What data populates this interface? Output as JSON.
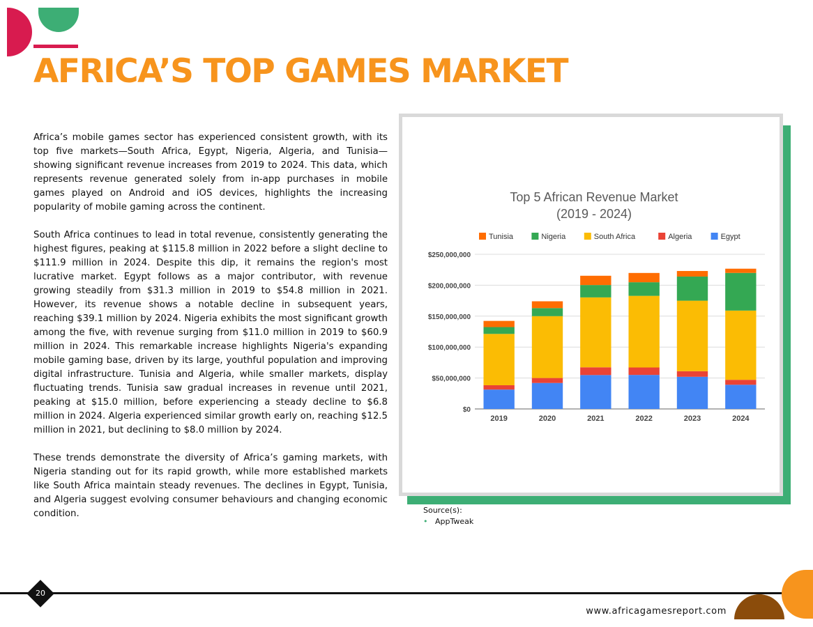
{
  "page": {
    "title": "AFRICA’S TOP GAMES MARKET",
    "paragraphs": [
      "Africa’s mobile games sector has experienced consistent growth, with its top five markets—South Africa, Egypt, Nigeria, Algeria, and Tunisia—showing significant revenue increases from 2019 to 2024. This data, which represents revenue generated solely from in-app purchases in mobile games played on Android and iOS devices, highlights the increasing popularity of mobile gaming across the continent.",
      "South Africa continues to lead in total revenue, consistently generating the highest figures, peaking at $115.8 million in 2022 before a slight decline to $111.9 million in 2024. Despite this dip, it remains the region's most lucrative market. Egypt follows as a major contributor, with revenue growing steadily from $31.3 million in 2019 to $54.8 million in 2021. However, its revenue shows a notable decline in subsequent years, reaching $39.1 million by 2024. Nigeria exhibits the most significant growth among the five, with revenue surging from $11.0 million in 2019 to $60.9 million in 2024. This remarkable increase highlights Nigeria's expanding mobile gaming base, driven by its large, youthful population and improving digital infrastructure. Tunisia and Algeria, while smaller markets, display fluctuating trends. Tunisia saw gradual increases in revenue until 2021, peaking at $15.0 million, before experiencing a steady decline to $6.8 million in 2024. Algeria experienced similar growth early on, reaching $12.5 million in 2021, but declining to $8.0 million by 2024.",
      "These trends demonstrate the diversity of Africa’s gaming markets, with Nigeria standing out for its rapid growth, while more established markets like South Africa maintain steady revenues. The declines in Egypt, Tunisia, and Algeria suggest evolving consumer behaviours and changing economic condition."
    ],
    "source_label": "Source(s):",
    "sources": [
      "AppTweak"
    ],
    "page_number": "20",
    "footer_url": "www.africagamesreport.com"
  },
  "colors": {
    "accent_orange": "#f7941d",
    "accent_green": "#3dae75",
    "accent_pink": "#d81b4f",
    "accent_brown": "#8b4c0b"
  },
  "chart_data": {
    "type": "bar",
    "stacked": true,
    "title_lines": [
      "Top 5 African Revenue Market",
      "(2019 - 2024)"
    ],
    "categories": [
      "2019",
      "2020",
      "2021",
      "2022",
      "2023",
      "2024"
    ],
    "ylim": [
      0,
      250000000
    ],
    "yticks": [
      {
        "value": 0,
        "label": "$0"
      },
      {
        "value": 50000000,
        "label": "$50,000,000"
      },
      {
        "value": 100000000,
        "label": "$100,000,000"
      },
      {
        "value": 150000000,
        "label": "$150,000,000"
      },
      {
        "value": 200000000,
        "label": "$200,000,000"
      },
      {
        "value": 250000000,
        "label": "$250,000,000"
      }
    ],
    "grid": true,
    "legend_position": "top",
    "legend_order": [
      "Tunisia",
      "Nigeria",
      "South Africa",
      "Algeria",
      "Egypt"
    ],
    "series": [
      {
        "name": "Egypt",
        "color": "#4285f4",
        "values": [
          31300000,
          42000000,
          54800000,
          55000000,
          52000000,
          39100000
        ]
      },
      {
        "name": "Algeria",
        "color": "#ea4335",
        "values": [
          7000000,
          8000000,
          12500000,
          12000000,
          9000000,
          8000000
        ]
      },
      {
        "name": "South Africa",
        "color": "#fbbc04",
        "values": [
          83000000,
          100000000,
          113000000,
          115800000,
          114000000,
          111900000
        ]
      },
      {
        "name": "Nigeria",
        "color": "#34a853",
        "values": [
          11000000,
          13000000,
          20000000,
          22000000,
          39000000,
          60900000
        ]
      },
      {
        "name": "Tunisia",
        "color": "#ff6d01",
        "values": [
          10000000,
          11000000,
          15000000,
          15000000,
          9000000,
          6800000
        ]
      }
    ]
  }
}
